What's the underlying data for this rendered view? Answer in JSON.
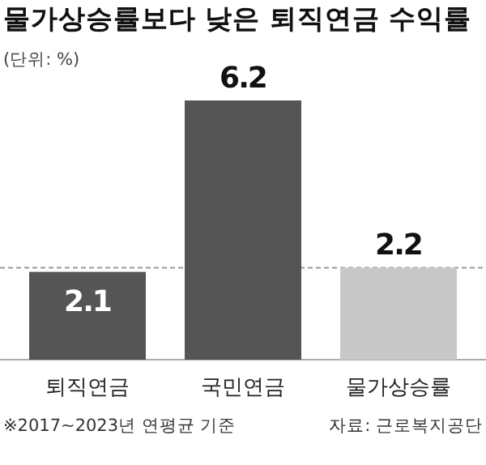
{
  "chart_data": {
    "type": "bar",
    "title": "물가상승률보다 낮은 퇴직연금 수익률",
    "subtitle": "(단위: %)",
    "categories": [
      "퇴직연금",
      "국민연금",
      "물가상승률"
    ],
    "values": [
      2.1,
      6.2,
      2.2
    ],
    "colors": [
      "#555555",
      "#555555",
      "#c8c8c8"
    ],
    "data_labels": true,
    "relative": false,
    "ref_lines": [
      {
        "axis": "y",
        "value": 2.2,
        "line_style": "dashed",
        "color": "#999999"
      }
    ],
    "annotations": [
      "※2017~2023년 연평균 기준",
      "자료: 근로복지공단"
    ]
  }
}
